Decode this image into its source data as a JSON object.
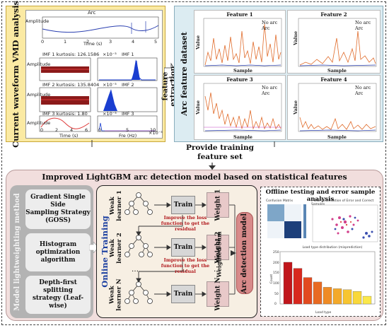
{
  "vmd": {
    "label": "Current waveform VMD analysis",
    "arc_title": "Arc",
    "amp1": "Amplitude",
    "time_label": "Time (s)",
    "imf1_kurtosis": "IMF 1  kurtosis: 126.1586",
    "imf1_right": "IMF 1",
    "imf2_kurtosis": "IMF 2  kurtosis: 135.8404",
    "imf2_right": "IMF 2",
    "imf3_kurtosis": "IMF 3  kurtosis: 1.80",
    "imf3_right": "IMF 3",
    "bottom_time": "Time (s)",
    "bottom_freq": "Fre (Hz)",
    "amp_imf1": "Amplitude",
    "amp_imf2": "Amplitude",
    "amp_imf3": "Amplitude",
    "exp1": "×10⁻³",
    "exp2": "×10⁻³",
    "exp3": "×10⁻³",
    "exp4": "×10⁻³",
    "top_ticks": [
      "0",
      "1",
      "2",
      "3",
      "4",
      "5"
    ],
    "bottom_ticks": [
      "0",
      "2",
      "4",
      "6"
    ],
    "freq_ticks": [
      "0",
      "5",
      "10"
    ]
  },
  "feature_extraction": {
    "line1": "feature",
    "line2": "extraction"
  },
  "dataset": {
    "label": "Arc  feature dataset",
    "features": [
      {
        "title": "Feature 1",
        "xlabel": "Sample",
        "ylabel": "Value"
      },
      {
        "title": "Feature 2",
        "xlabel": "Sample",
        "ylabel": "Value"
      },
      {
        "title": "Feature 3",
        "xlabel": "Sample",
        "ylabel": "Value"
      },
      {
        "title": "Feature 4",
        "xlabel": "Sample",
        "ylabel": "Value"
      }
    ],
    "legend_no_arc": "No arc",
    "legend_arc": "Arc",
    "no_arc_color": "#e06b2a",
    "arc_color": "#2a3fb0"
  },
  "provide_training": {
    "line1": "Provide training",
    "line2": "feature set"
  },
  "lgbm": {
    "title": "Improved LightGBM arc detection model based on statistical features",
    "lightweighting_label": "Model lightweighting method",
    "goss": [
      "Gradient Single Side",
      "Sampling Strategy",
      "(GOSS)"
    ],
    "histogram": [
      "Histogram",
      "optimization",
      "algorithm"
    ],
    "leafwise": [
      "Depth-first splitting",
      "strategy (Leaf-wise)"
    ],
    "online_training": "Online Training",
    "learners": [
      {
        "line1": "Weak",
        "line2": "learner 1",
        "train": "Train",
        "weight": "Weight 1"
      },
      {
        "line1": "Weak",
        "line2": "learner 2",
        "train": "Train",
        "weight": "Weight 2"
      },
      {
        "line1": "Weak",
        "line2": "learner N",
        "train": "Train",
        "weight": "Weight N"
      }
    ],
    "improve": [
      "Improve the loss",
      "function to get the",
      "residual"
    ],
    "ellipsis": "…",
    "weighted_sum": "Weighted Sum",
    "arc_detection_model": "Arc detection model"
  },
  "offline": {
    "title": "Offline testing and error sample analysis",
    "confusion_title": "Confusion Matrix",
    "tsne_title": "t-SNE Visualization of Error and Correct Samples",
    "load_title": "Load type distribution (misprediction)",
    "load_xlabel": "Load type",
    "load_ylabel": "Count",
    "load_values": [
      205,
      175,
      130,
      108,
      82,
      75,
      70,
      62,
      38
    ],
    "load_ymax": 250,
    "load_yticks": [
      "0",
      "50",
      "100",
      "150",
      "200",
      "250"
    ]
  }
}
